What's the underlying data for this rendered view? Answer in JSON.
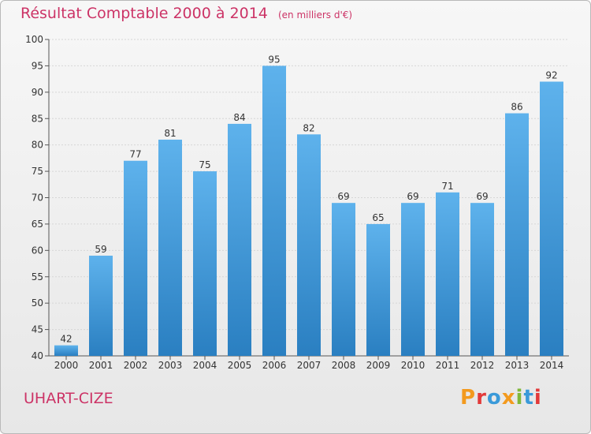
{
  "header": {
    "title": "Résultat Comptable 2000 à 2014",
    "unit": "(en milliers d'€)"
  },
  "footer": {
    "commune": "UHART-CIZE",
    "logo": "Proxiti"
  },
  "colors": {
    "title": "#cc3366",
    "bar_top": "#5eb2ec",
    "bar_bottom": "#2a7fc1",
    "logo_letters": [
      "#f39a1e",
      "#e23a3a",
      "#3a9ad9",
      "#f39a1e",
      "#7fb83a",
      "#3a9ad9",
      "#e23a3a"
    ]
  },
  "chart_data": {
    "type": "bar",
    "categories": [
      "2000",
      "2001",
      "2002",
      "2003",
      "2004",
      "2005",
      "2006",
      "2007",
      "2008",
      "2009",
      "2010",
      "2011",
      "2012",
      "2013",
      "2014"
    ],
    "values": [
      42,
      59,
      77,
      81,
      75,
      84,
      95,
      82,
      69,
      65,
      69,
      71,
      69,
      86,
      92
    ],
    "ylim": [
      40,
      100
    ],
    "yticks": [
      40,
      45,
      50,
      55,
      60,
      65,
      70,
      75,
      80,
      85,
      90,
      95,
      100
    ],
    "grid": true,
    "data_labels": true
  }
}
